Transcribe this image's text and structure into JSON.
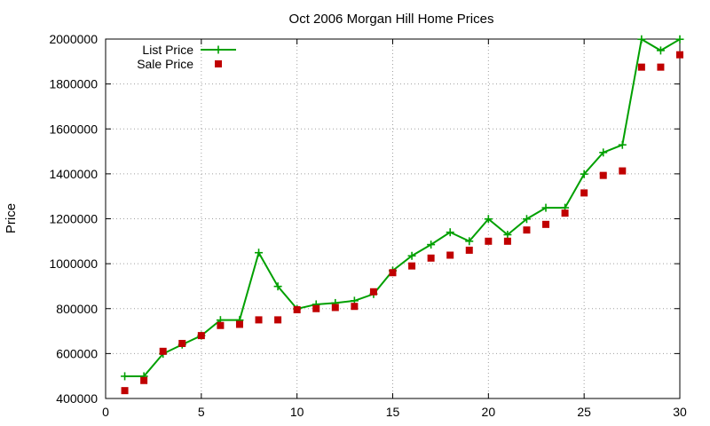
{
  "chart_data": {
    "type": "line",
    "title": "Oct 2006 Morgan Hill Home Prices",
    "xlabel": "",
    "ylabel": "Price",
    "xlim": [
      0,
      30
    ],
    "ylim": [
      400000,
      2000000
    ],
    "x_ticks": [
      "0",
      "5",
      "10",
      "15",
      "20",
      "25",
      "30"
    ],
    "y_ticks": [
      "400000",
      "600000",
      "800000",
      "1000000",
      "1200000",
      "1400000",
      "1600000",
      "1800000",
      "2000000"
    ],
    "grid": true,
    "legend_position": "top-left",
    "series": [
      {
        "name": "List Price",
        "style": "lines+points",
        "marker": "plus",
        "color": "#00a000",
        "x": [
          1,
          2,
          3,
          4,
          5,
          6,
          7,
          8,
          9,
          10,
          11,
          12,
          13,
          14,
          15,
          16,
          17,
          18,
          19,
          20,
          21,
          22,
          23,
          24,
          25,
          26,
          27,
          28,
          29,
          30
        ],
        "values": [
          499000,
          499000,
          599000,
          640000,
          680000,
          749000,
          749000,
          1049000,
          899000,
          799000,
          819000,
          825000,
          835000,
          865000,
          969000,
          1035000,
          1085000,
          1140000,
          1100000,
          1199000,
          1129000,
          1199000,
          1249000,
          1249000,
          1399000,
          1495000,
          1529000,
          1999000,
          1949000,
          1999000
        ]
      },
      {
        "name": "Sale Price",
        "style": "points",
        "marker": "square",
        "color": "#c00000",
        "x": [
          1,
          2,
          3,
          4,
          5,
          6,
          7,
          8,
          9,
          10,
          11,
          12,
          13,
          14,
          15,
          16,
          17,
          18,
          19,
          20,
          21,
          22,
          23,
          24,
          25,
          26,
          27,
          28,
          29,
          30
        ],
        "values": [
          435000,
          480000,
          610000,
          645000,
          680000,
          725000,
          730000,
          750000,
          750000,
          795000,
          800000,
          805000,
          810000,
          875000,
          960000,
          990000,
          1025000,
          1038000,
          1060000,
          1100000,
          1100000,
          1150000,
          1175000,
          1225000,
          1315000,
          1393000,
          1413000,
          1875000,
          1875000,
          1930000
        ]
      }
    ]
  }
}
